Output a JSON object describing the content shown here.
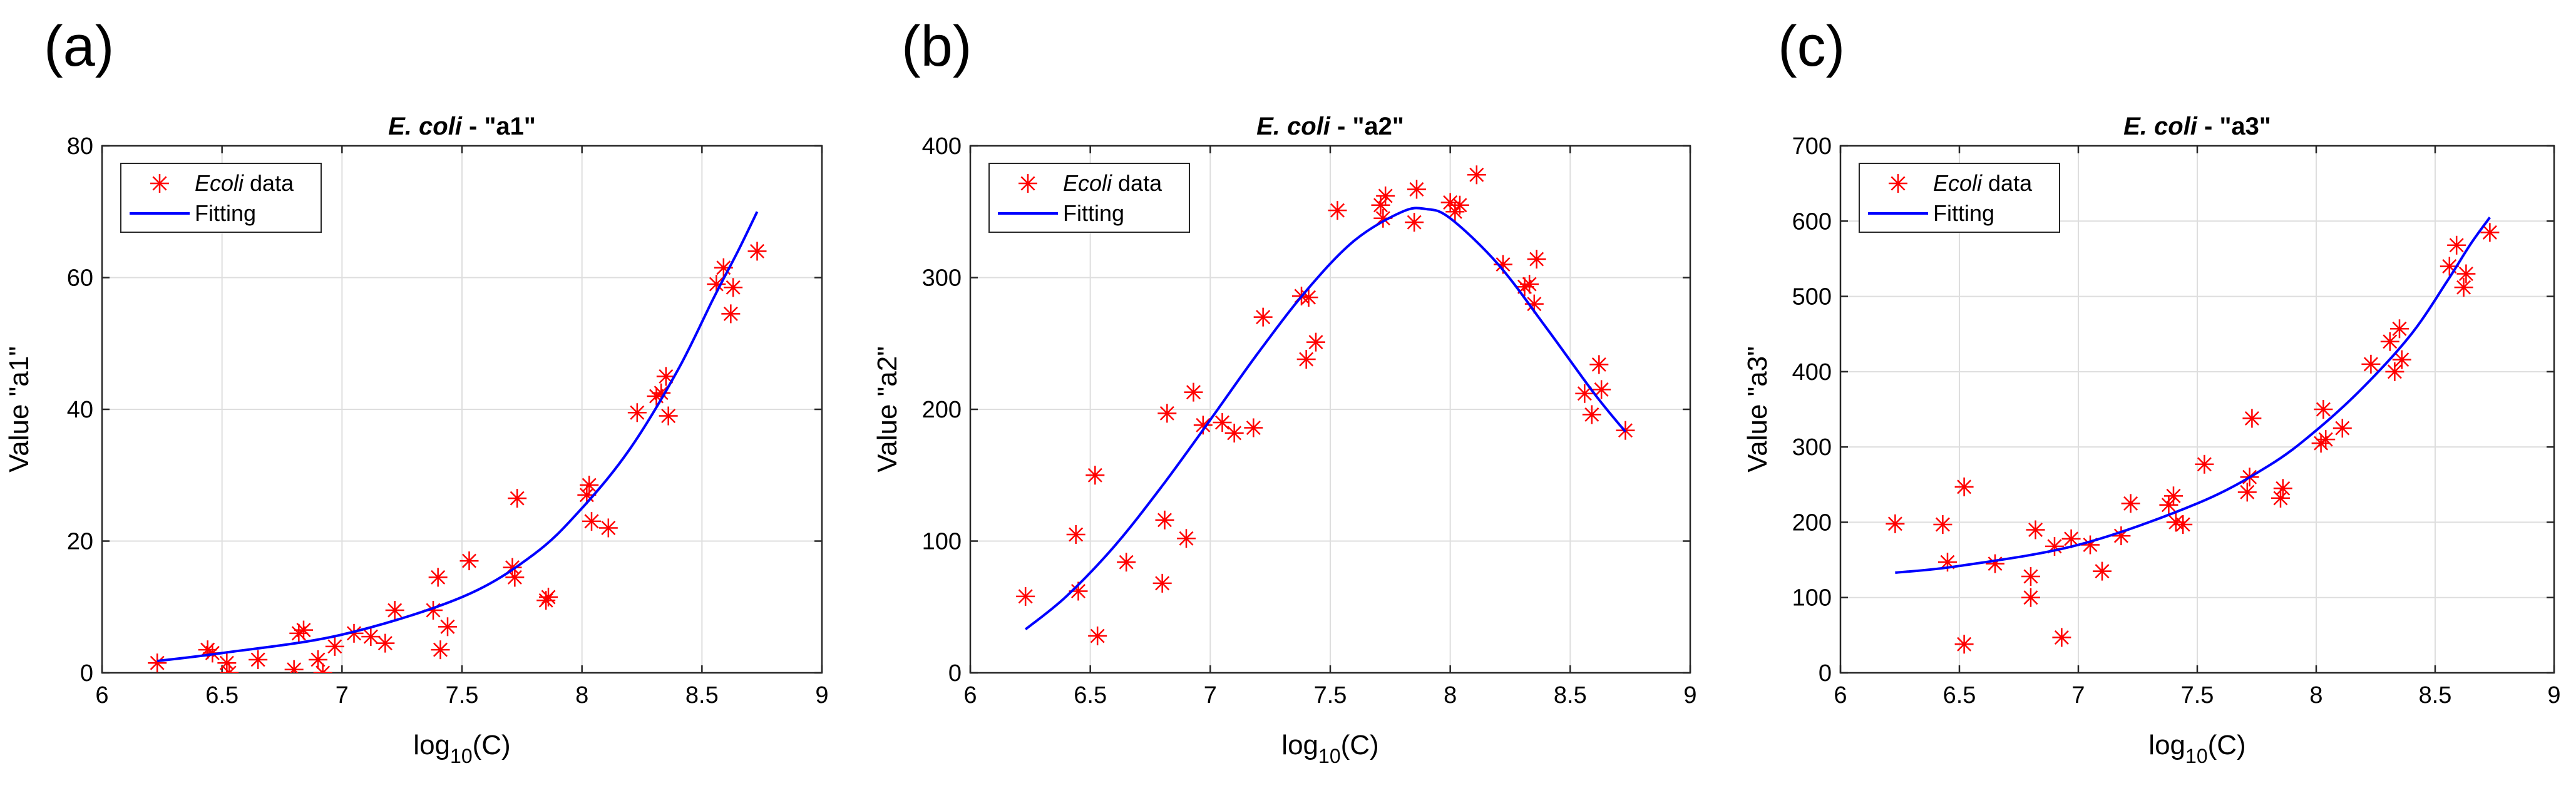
{
  "chart_data": [
    {
      "type": "scatter",
      "panel_label": "(a)",
      "title_species": "E. coli",
      "title_rest": " - \"a1\"",
      "xlabel_base": "log",
      "xlabel_sub": "10",
      "xlabel_rest": "(C)",
      "ylabel": "Value \"a1\"",
      "xlim": [
        6,
        9
      ],
      "ylim": [
        0,
        80
      ],
      "xticks": [
        6,
        6.5,
        7,
        7.5,
        8,
        8.5,
        9
      ],
      "yticks": [
        0,
        20,
        40,
        60,
        80
      ],
      "xtick_labels": [
        "6",
        "6.5",
        "7",
        "7.5",
        "8",
        "8.5",
        "9"
      ],
      "ytick_labels": [
        "0",
        "20",
        "40",
        "60",
        "80"
      ],
      "grid": true,
      "legend_location": "top-left",
      "series": [
        {
          "name_italic": "Ecoli",
          "name_rest": " data",
          "kind": "markers",
          "marker": "asterisk",
          "color": "#ff0000",
          "x": [
            6.23,
            6.44,
            6.46,
            6.52,
            6.53,
            6.65,
            6.8,
            6.82,
            6.84,
            6.9,
            6.92,
            6.97,
            7.05,
            7.12,
            7.18,
            7.22,
            7.38,
            7.4,
            7.41,
            7.44,
            7.53,
            7.71,
            7.72,
            7.73,
            7.85,
            7.86,
            8.02,
            8.03,
            8.04,
            8.11,
            8.23,
            8.31,
            8.33,
            8.35,
            8.36,
            8.56,
            8.59,
            8.62,
            8.63,
            8.73
          ],
          "y": [
            1.5,
            3.5,
            3,
            1.5,
            0,
            2,
            0.5,
            6,
            6.5,
            2,
            0,
            4,
            6,
            5.5,
            4.5,
            9.5,
            9.5,
            14.5,
            3.5,
            7,
            17,
            16,
            14.5,
            26.5,
            11,
            11.5,
            27,
            28.5,
            23,
            22,
            39.5,
            42,
            42.5,
            45,
            39,
            59,
            61.5,
            54.5,
            58.5,
            64
          ]
        },
        {
          "name": "Fitting",
          "kind": "line",
          "color": "#0000ff",
          "x": [
            6.23,
            6.5,
            7.0,
            7.5,
            7.8,
            8.0,
            8.2,
            8.4,
            8.55,
            8.65,
            8.73
          ],
          "y": [
            1.8,
            3.0,
            5.8,
            11.5,
            18,
            25,
            34,
            46,
            57,
            64,
            70
          ]
        }
      ]
    },
    {
      "type": "scatter",
      "panel_label": "(b)",
      "title_species": "E. coli",
      "title_rest": " - \"a2\"",
      "xlabel_base": "log",
      "xlabel_sub": "10",
      "xlabel_rest": "(C)",
      "ylabel": "Value \"a2\"",
      "xlim": [
        6,
        9
      ],
      "ylim": [
        0,
        400
      ],
      "xticks": [
        6,
        6.5,
        7,
        7.5,
        8,
        8.5,
        9
      ],
      "yticks": [
        0,
        100,
        200,
        300,
        400
      ],
      "xtick_labels": [
        "6",
        "6.5",
        "7",
        "7.5",
        "8",
        "8.5",
        "9"
      ],
      "ytick_labels": [
        "0",
        "100",
        "200",
        "300",
        "400"
      ],
      "grid": true,
      "legend_location": "top-left",
      "series": [
        {
          "name_italic": "Ecoli",
          "name_rest": " data",
          "kind": "markers",
          "marker": "asterisk",
          "color": "#ff0000",
          "x": [
            6.23,
            6.44,
            6.45,
            6.52,
            6.53,
            6.65,
            6.8,
            6.81,
            6.82,
            6.9,
            6.93,
            6.97,
            7.05,
            7.1,
            7.18,
            7.22,
            7.38,
            7.4,
            7.41,
            7.44,
            7.53,
            7.71,
            7.72,
            7.73,
            7.85,
            7.86,
            8.0,
            8.02,
            8.04,
            8.11,
            8.22,
            8.31,
            8.33,
            8.35,
            8.36,
            8.56,
            8.59,
            8.62,
            8.63,
            8.73
          ],
          "y": [
            58,
            105,
            62,
            150,
            28,
            84,
            68,
            116,
            197,
            102,
            213,
            188,
            190,
            182,
            186,
            270,
            286,
            238,
            285,
            251,
            351,
            355,
            345,
            362,
            342,
            367,
            357,
            350,
            355,
            378,
            310,
            293,
            295,
            280,
            314,
            212,
            196,
            234,
            215,
            184
          ]
        },
        {
          "name": "Fitting",
          "kind": "line",
          "color": "#0000ff",
          "x": [
            6.23,
            6.4,
            6.6,
            6.8,
            7.0,
            7.2,
            7.4,
            7.6,
            7.8,
            7.9,
            8.0,
            8.2,
            8.4,
            8.6,
            8.73
          ],
          "y": [
            33,
            58,
            96,
            142,
            192,
            243,
            290,
            328,
            350,
            352,
            345,
            310,
            262,
            212,
            183
          ]
        }
      ]
    },
    {
      "type": "scatter",
      "panel_label": "(c)",
      "title_species": "E. coli",
      "title_rest": " - \"a3\"",
      "xlabel_base": "log",
      "xlabel_sub": "10",
      "xlabel_rest": "(C)",
      "ylabel": "Value \"a3\"",
      "xlim": [
        6,
        9
      ],
      "ylim": [
        0,
        700
      ],
      "xticks": [
        6,
        6.5,
        7,
        7.5,
        8,
        8.5,
        9
      ],
      "yticks": [
        0,
        100,
        200,
        300,
        400,
        500,
        600,
        700
      ],
      "xtick_labels": [
        "6",
        "6.5",
        "7",
        "7.5",
        "8",
        "8.5",
        "9"
      ],
      "ytick_labels": [
        "0",
        "100",
        "200",
        "300",
        "400",
        "500",
        "600",
        "700"
      ],
      "grid": true,
      "legend_location": "top-left",
      "series": [
        {
          "name_italic": "Ecoli",
          "name_rest": " data",
          "kind": "markers",
          "marker": "asterisk",
          "color": "#ff0000",
          "x": [
            6.23,
            6.43,
            6.45,
            6.52,
            6.52,
            6.65,
            6.8,
            6.8,
            6.82,
            6.9,
            6.93,
            6.97,
            7.05,
            7.1,
            7.18,
            7.22,
            7.38,
            7.4,
            7.41,
            7.44,
            7.53,
            7.71,
            7.72,
            7.73,
            7.85,
            7.86,
            8.02,
            8.03,
            8.04,
            8.11,
            8.23,
            8.31,
            8.33,
            8.35,
            8.36,
            8.56,
            8.59,
            8.62,
            8.63,
            8.73
          ],
          "y": [
            198,
            197,
            147,
            247,
            38,
            145,
            100,
            128,
            190,
            168,
            47,
            178,
            170,
            135,
            182,
            225,
            223,
            235,
            200,
            197,
            277,
            240,
            260,
            338,
            232,
            245,
            305,
            350,
            310,
            325,
            410,
            440,
            400,
            457,
            416,
            540,
            568,
            512,
            530,
            585
          ]
        },
        {
          "name": "Fitting",
          "kind": "line",
          "color": "#0000ff",
          "x": [
            6.23,
            6.5,
            7.0,
            7.5,
            7.8,
            8.0,
            8.2,
            8.4,
            8.55,
            8.65,
            8.73
          ],
          "y": [
            133,
            142,
            170,
            225,
            275,
            322,
            380,
            450,
            520,
            570,
            605
          ]
        }
      ]
    }
  ]
}
